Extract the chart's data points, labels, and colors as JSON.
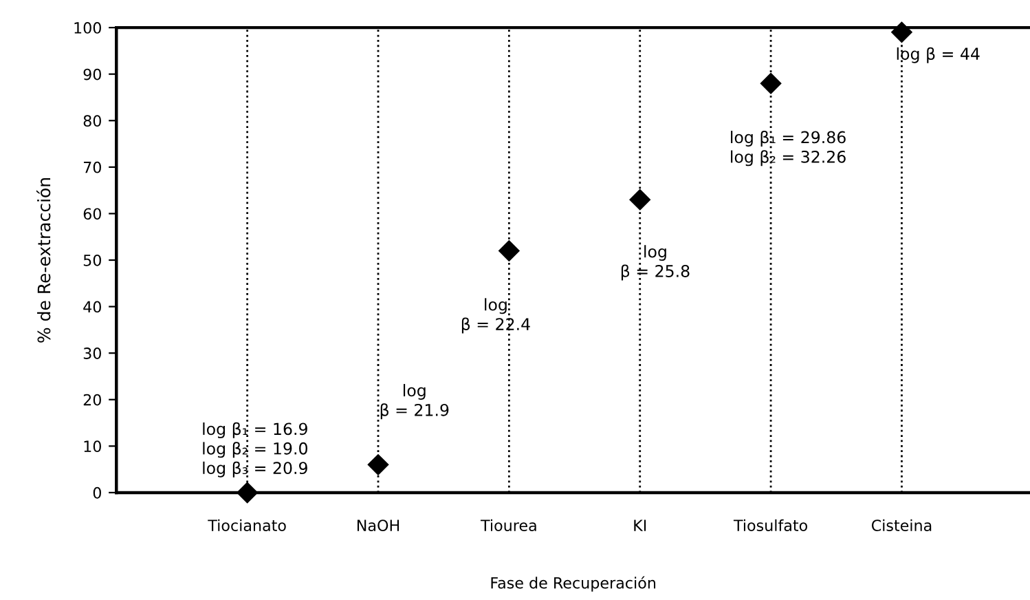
{
  "chart_data": {
    "type": "scatter",
    "xlabel": "Fase de Recuperación",
    "ylabel": "% de Re-extracción",
    "categories": [
      "Tiocianato",
      "NaOH",
      "Tiourea",
      "KI",
      "Tiosulfato",
      "Cisteina"
    ],
    "series": [
      {
        "color": "#000000",
        "values": [
          0,
          6,
          52,
          63,
          88,
          99
        ]
      }
    ],
    "marker": "diamond",
    "ylim": [
      0,
      100
    ],
    "yticks": [
      0,
      10,
      20,
      30,
      40,
      50,
      60,
      70,
      80,
      90,
      100
    ],
    "grid": "x",
    "annotations": [
      {
        "text": "log β₁ = 16.9\nlog β₂ = 19.0\nlog β₃ = 20.9",
        "x": "Tiocianato",
        "y": 0
      },
      {
        "text": "log\nβ = 21.9",
        "x": "NaOH",
        "y": 6
      },
      {
        "text": "log\nβ = 22.4",
        "x": "Tiourea",
        "y": 52
      },
      {
        "text": "log\nβ = 25.8",
        "x": "KI",
        "y": 63
      },
      {
        "text": "log β₁ = 29.86\nlog β₂ = 32.26",
        "x": "Tiosulfato",
        "y": 88
      },
      {
        "text": "log β = 44",
        "x": "Cisteina",
        "y": 99
      }
    ]
  }
}
